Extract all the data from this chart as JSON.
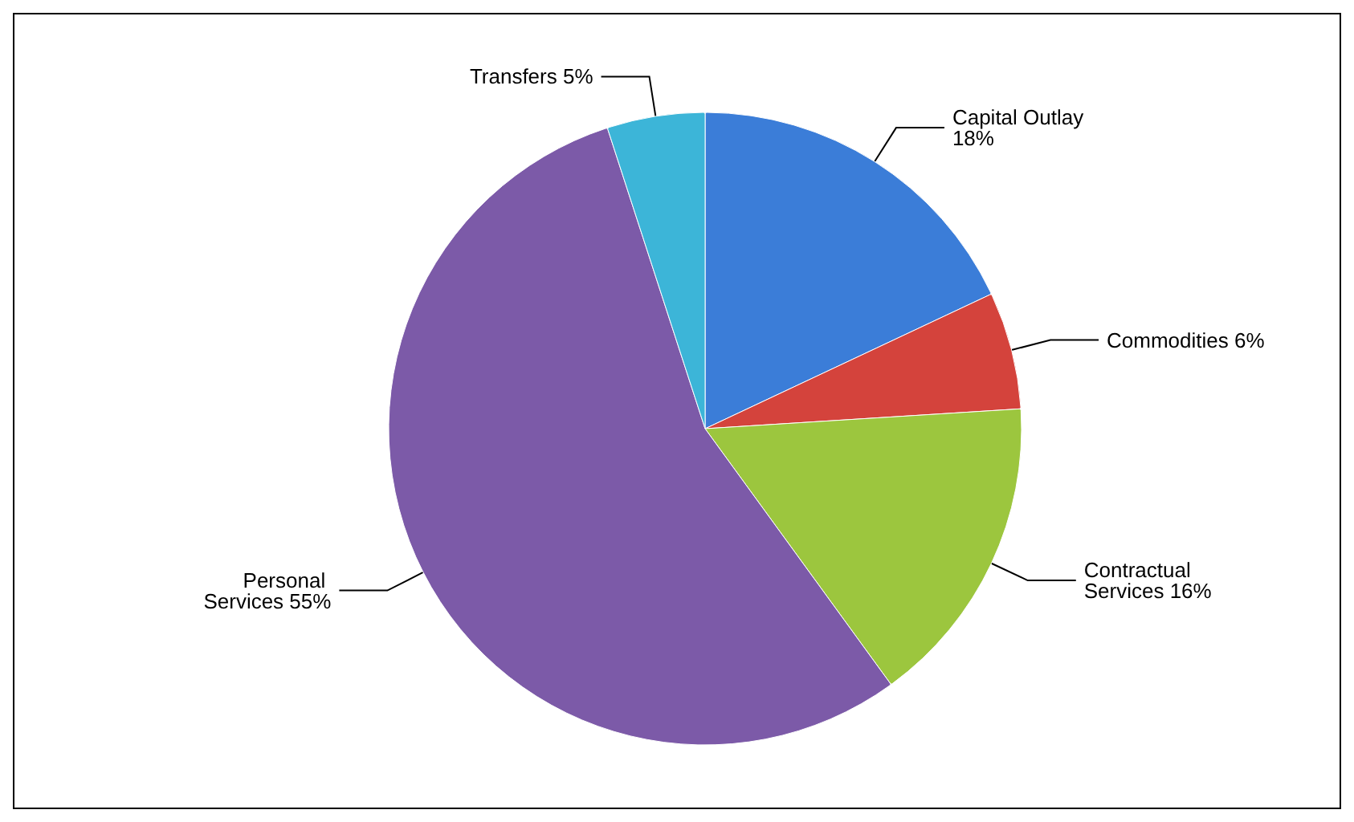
{
  "chart_data": {
    "type": "pie",
    "categories": [
      "Capital Outlay",
      "Commodities",
      "Contractual Services",
      "Personal Services",
      "Transfers"
    ],
    "values": [
      18,
      6,
      16,
      55,
      5
    ],
    "value_labels": [
      "18%",
      "6%",
      "16%",
      "55%",
      "5%"
    ],
    "colors": [
      "#3b7dd8",
      "#d4433c",
      "#9cc63e",
      "#7c5aa8",
      "#3cb5d8"
    ],
    "legend": false
  }
}
